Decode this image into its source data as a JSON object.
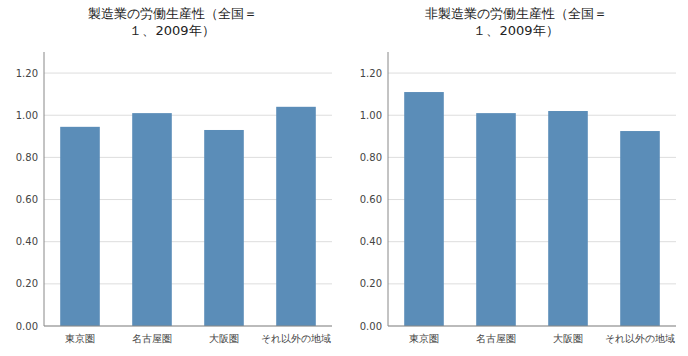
{
  "chart_data": [
    {
      "type": "bar",
      "title": "製造業の労働生産性（全国＝\n１、2009年）",
      "categories": [
        "東京圏",
        "名古屋圏",
        "大阪圏",
        "それ以外の地域"
      ],
      "values": [
        0.945,
        1.01,
        0.93,
        1.04
      ],
      "color": "#5B8DB8",
      "ylim": [
        0.0,
        1.3
      ],
      "yticks": [
        {
          "value": 0.0,
          "label": "0.00"
        },
        {
          "value": 0.2,
          "label": "0.20"
        },
        {
          "value": 0.4,
          "label": "0.40"
        },
        {
          "value": 0.6,
          "label": "0.60"
        },
        {
          "value": 0.8,
          "label": "0.80"
        },
        {
          "value": 1.0,
          "label": "1.00"
        },
        {
          "value": 1.2,
          "label": "1.20"
        }
      ],
      "grid": true
    },
    {
      "type": "bar",
      "title": "非製造業の労働生産性（全国＝\n１、2009年）",
      "categories": [
        "東京圏",
        "名古屋圏",
        "大阪圏",
        "それ以外の地域"
      ],
      "values": [
        1.11,
        1.01,
        1.02,
        0.925
      ],
      "color": "#5B8DB8",
      "ylim": [
        0.0,
        1.3
      ],
      "yticks": [
        {
          "value": 0.0,
          "label": "0.00"
        },
        {
          "value": 0.2,
          "label": "0.20"
        },
        {
          "value": 0.4,
          "label": "0.40"
        },
        {
          "value": 0.6,
          "label": "0.60"
        },
        {
          "value": 0.8,
          "label": "0.80"
        },
        {
          "value": 1.0,
          "label": "1.00"
        },
        {
          "value": 1.2,
          "label": "1.20"
        }
      ],
      "grid": true
    }
  ]
}
